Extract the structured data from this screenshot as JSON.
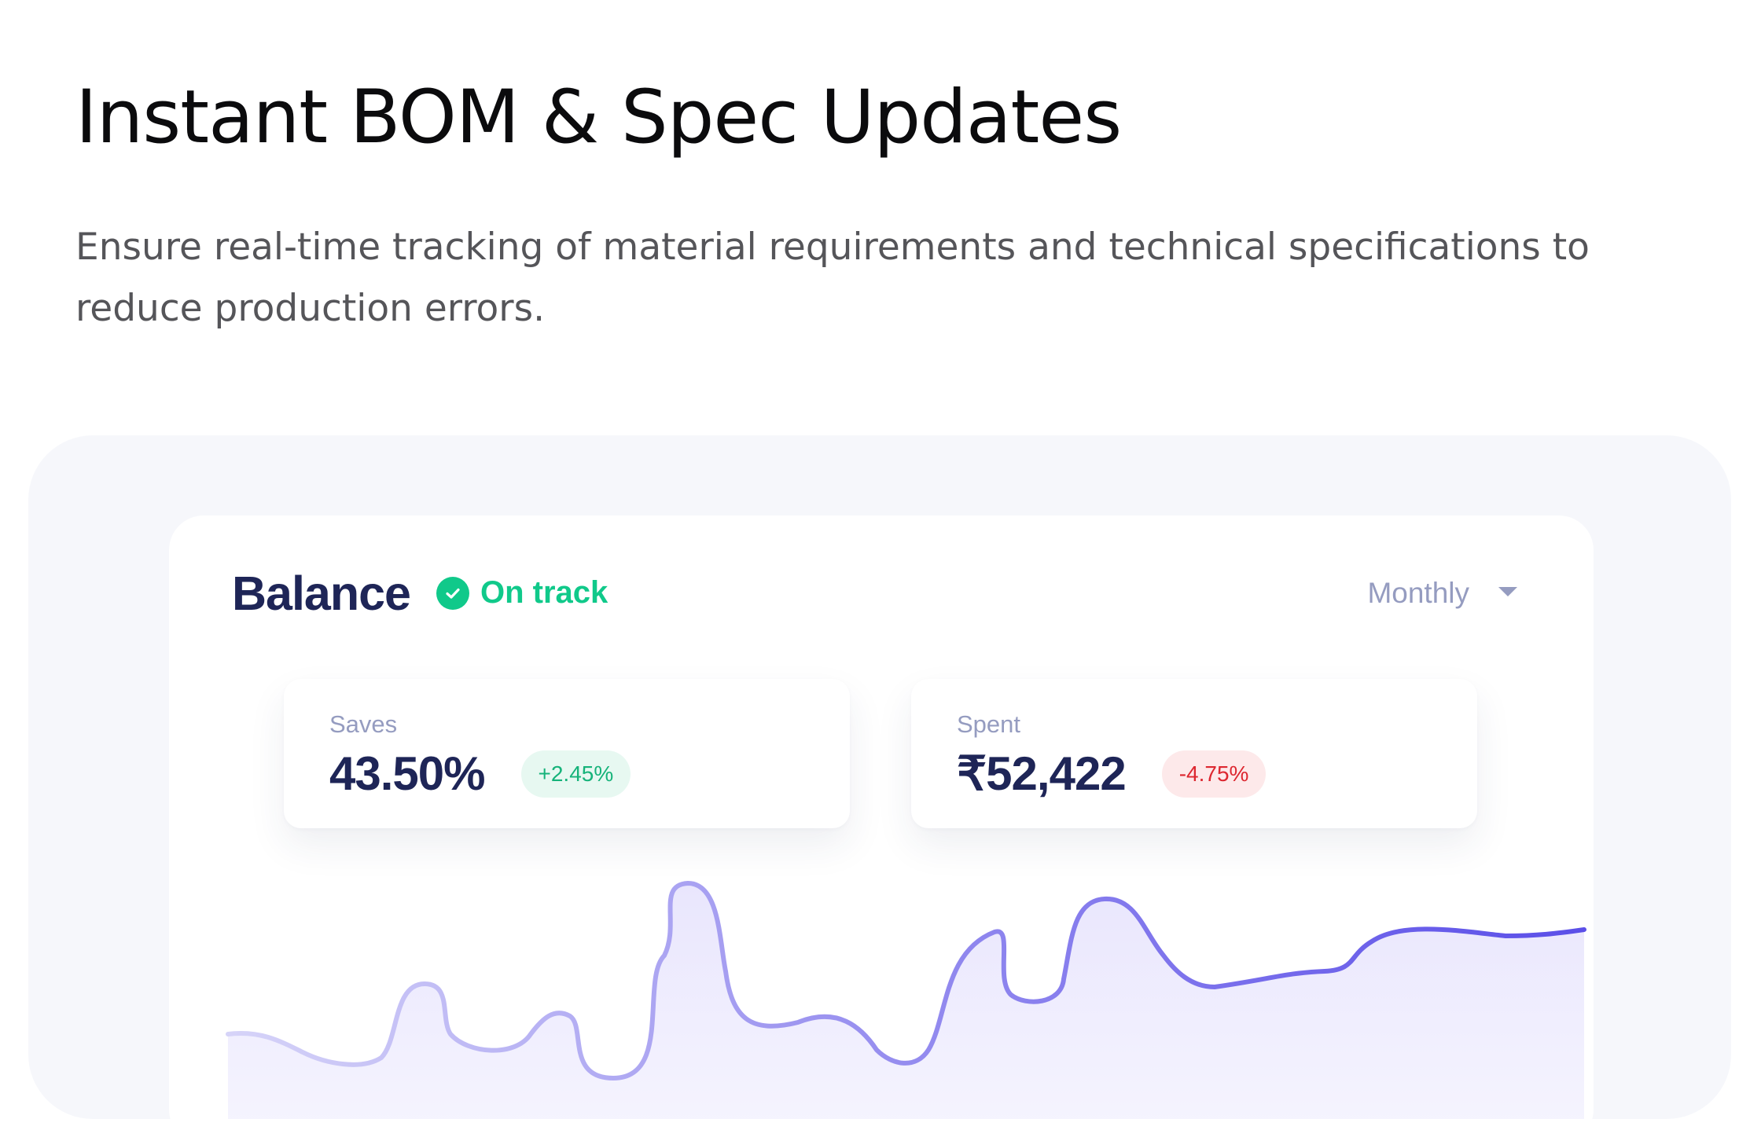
{
  "hero": {
    "title": "Instant BOM & Spec Updates",
    "description": "Ensure real-time tracking of material requirements and technical specifications to reduce production errors."
  },
  "dashboard": {
    "title": "Balance",
    "status": {
      "label": "On track",
      "icon": "check-circle-icon",
      "color": "#10c98a"
    },
    "period": {
      "selected": "Monthly",
      "icon": "caret-down-icon"
    },
    "stats": {
      "saves": {
        "label": "Saves",
        "value": "43.50%",
        "change": "+2.45%",
        "trend": "up"
      },
      "spent": {
        "label": "Spent",
        "value": "₹52,422",
        "change": "-4.75%",
        "trend": "down"
      }
    },
    "chart": {
      "type": "smooth-area-line",
      "line_colors": [
        "#d8d6fa",
        "#5a4ee8"
      ],
      "fill_color": "#ebe8fd"
    }
  },
  "colors": {
    "heading": "#0b0b0d",
    "body_text": "#555559",
    "panel_bg": "#f6f7fb",
    "navy": "#1e2557",
    "muted": "#959cc0",
    "positive": "#10c98a",
    "negative": "#dd2730",
    "accent": "#5a4ee8"
  }
}
